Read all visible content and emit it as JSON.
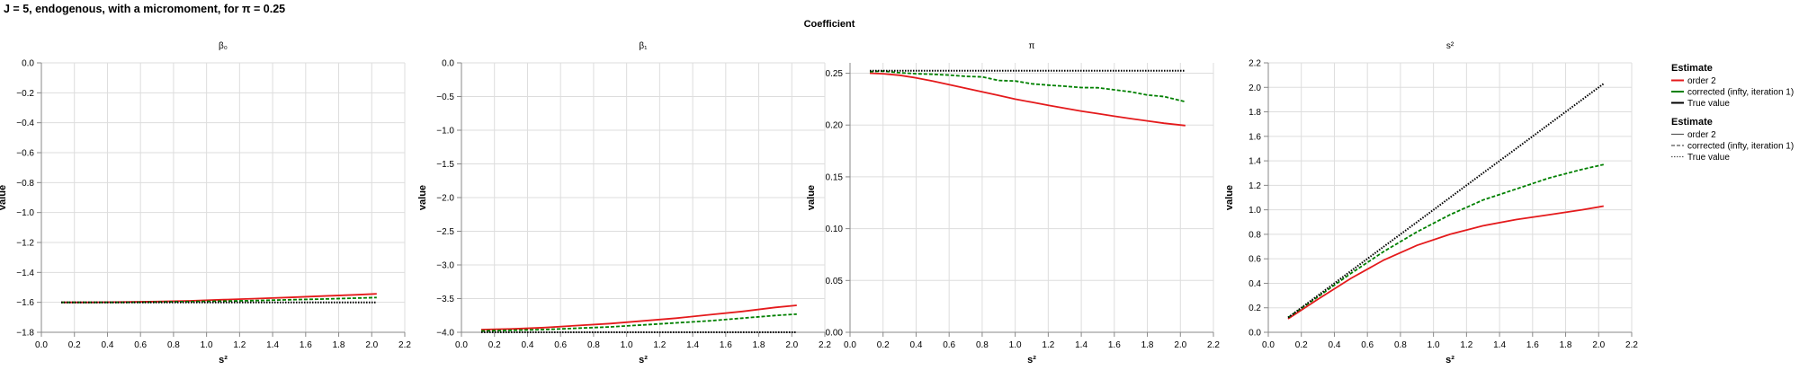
{
  "figure_title": "J = 5, endogenous, with a micromoment,  for π = 0.25",
  "facet_title": "Coefficient",
  "colors": {
    "order2": "#e41a1c",
    "corrected": "#008000",
    "true": "#000000",
    "grid": "#dddddd",
    "axis": "#888888"
  },
  "legend": {
    "color_title": "Estimate",
    "dash_title": "Estimate",
    "entries": [
      "order 2",
      "corrected (infty, iteration 1)",
      "True value"
    ]
  },
  "chart_data": [
    {
      "type": "line",
      "title": "β₀",
      "xlabel": "s²",
      "ylabel": "value",
      "xlim": [
        0.0,
        2.2
      ],
      "ylim": [
        -1.8,
        0.0
      ],
      "xticks": [
        "0.0",
        "0.2",
        "0.4",
        "0.6",
        "0.8",
        "1.0",
        "1.2",
        "1.4",
        "1.6",
        "1.8",
        "2.0",
        "2.2"
      ],
      "yticks": [
        "0.0",
        "−0.2",
        "−0.4",
        "−0.6",
        "−0.8",
        "−1.0",
        "−1.2",
        "−1.4",
        "−1.6",
        "−1.8"
      ],
      "ytick_values": [
        0.0,
        -0.2,
        -0.4,
        -0.6,
        -0.8,
        -1.0,
        -1.2,
        -1.4,
        -1.6,
        -1.8
      ],
      "x": [
        0.12,
        0.3,
        0.5,
        0.7,
        0.9,
        1.1,
        1.3,
        1.5,
        1.7,
        1.9,
        2.03
      ],
      "series": [
        {
          "name": "order 2",
          "values": [
            -1.6,
            -1.6,
            -1.598,
            -1.595,
            -1.59,
            -1.582,
            -1.575,
            -1.567,
            -1.558,
            -1.55,
            -1.543
          ]
        },
        {
          "name": "corrected (infty, iteration 1)",
          "values": [
            -1.6,
            -1.6,
            -1.6,
            -1.598,
            -1.595,
            -1.592,
            -1.588,
            -1.583,
            -1.578,
            -1.572,
            -1.568
          ]
        },
        {
          "name": "True value",
          "values": [
            -1.6,
            -1.6,
            -1.6,
            -1.6,
            -1.6,
            -1.6,
            -1.6,
            -1.6,
            -1.6,
            -1.6,
            -1.6
          ]
        }
      ]
    },
    {
      "type": "line",
      "title": "β₁",
      "xlabel": "s²",
      "ylabel": "value",
      "xlim": [
        0.0,
        2.2
      ],
      "ylim": [
        -4.0,
        0.0
      ],
      "xticks": [
        "0.0",
        "0.2",
        "0.4",
        "0.6",
        "0.8",
        "1.0",
        "1.2",
        "1.4",
        "1.6",
        "1.8",
        "2.0",
        "2.2"
      ],
      "yticks": [
        "0.0",
        "−0.5",
        "−1.0",
        "−1.5",
        "−2.0",
        "−2.5",
        "−3.0",
        "−3.5",
        "−4.0"
      ],
      "ytick_values": [
        0.0,
        -0.5,
        -1.0,
        -1.5,
        -2.0,
        -2.5,
        -3.0,
        -3.5,
        -4.0
      ],
      "x": [
        0.12,
        0.3,
        0.5,
        0.7,
        0.9,
        1.1,
        1.3,
        1.5,
        1.7,
        1.9,
        2.03
      ],
      "series": [
        {
          "name": "order 2",
          "values": [
            -3.96,
            -3.95,
            -3.93,
            -3.9,
            -3.87,
            -3.83,
            -3.79,
            -3.74,
            -3.69,
            -3.63,
            -3.6
          ]
        },
        {
          "name": "corrected (infty, iteration 1)",
          "values": [
            -3.98,
            -3.97,
            -3.96,
            -3.94,
            -3.92,
            -3.89,
            -3.86,
            -3.83,
            -3.79,
            -3.75,
            -3.73
          ]
        },
        {
          "name": "True value",
          "values": [
            -4.0,
            -4.0,
            -4.0,
            -4.0,
            -4.0,
            -4.0,
            -4.0,
            -4.0,
            -4.0,
            -4.0,
            -4.0
          ]
        }
      ]
    },
    {
      "type": "line",
      "title": "π",
      "xlabel": "s²",
      "ylabel": "value",
      "xlim": [
        0.0,
        2.2
      ],
      "ylim": [
        0.0,
        0.26
      ],
      "xticks": [
        "0.0",
        "0.2",
        "0.4",
        "0.6",
        "0.8",
        "1.0",
        "1.2",
        "1.4",
        "1.6",
        "1.8",
        "2.0",
        "2.2"
      ],
      "yticks": [
        "0.25",
        "0.20",
        "0.15",
        "0.10",
        "0.05",
        "0.00"
      ],
      "ytick_values": [
        0.25,
        0.2,
        0.15,
        0.1,
        0.05,
        0.0
      ],
      "x": [
        0.12,
        0.2,
        0.3,
        0.4,
        0.5,
        0.6,
        0.7,
        0.8,
        0.9,
        1.0,
        1.1,
        1.2,
        1.3,
        1.4,
        1.5,
        1.6,
        1.7,
        1.8,
        1.9,
        2.03
      ],
      "series": [
        {
          "name": "order 2",
          "values": [
            0.25,
            0.2495,
            0.248,
            0.2455,
            0.2425,
            0.239,
            0.2355,
            0.232,
            0.2285,
            0.225,
            0.222,
            0.219,
            0.2162,
            0.2135,
            0.211,
            0.2085,
            0.2062,
            0.204,
            0.2018,
            0.1995
          ]
        },
        {
          "name": "corrected (infty, iteration 1)",
          "values": [
            0.2515,
            0.252,
            0.2505,
            0.2495,
            0.249,
            0.2482,
            0.247,
            0.2465,
            0.243,
            0.2425,
            0.2398,
            0.2385,
            0.2375,
            0.2362,
            0.236,
            0.234,
            0.232,
            0.229,
            0.2275,
            0.2225
          ]
        },
        {
          "name": "True value",
          "values": [
            0.2525,
            0.2525,
            0.2525,
            0.2525,
            0.2525,
            0.2525,
            0.2525,
            0.2525,
            0.2525,
            0.2525,
            0.2525,
            0.2525,
            0.2525,
            0.2525,
            0.2525,
            0.2525,
            0.2525,
            0.2525,
            0.2525,
            0.2525
          ]
        }
      ]
    },
    {
      "type": "line",
      "title": "s²",
      "xlabel": "s²",
      "ylabel": "value",
      "xlim": [
        0.0,
        2.2
      ],
      "ylim": [
        0.0,
        2.2
      ],
      "xticks": [
        "0.0",
        "0.2",
        "0.4",
        "0.6",
        "0.8",
        "1.0",
        "1.2",
        "1.4",
        "1.6",
        "1.8",
        "2.0",
        "2.2"
      ],
      "yticks": [
        "2.2",
        "2.0",
        "1.8",
        "1.6",
        "1.4",
        "1.2",
        "1.0",
        "0.8",
        "0.6",
        "0.4",
        "0.2",
        "0.0"
      ],
      "ytick_values": [
        2.2,
        2.0,
        1.8,
        1.6,
        1.4,
        1.2,
        1.0,
        0.8,
        0.6,
        0.4,
        0.2,
        0.0
      ],
      "x": [
        0.12,
        0.3,
        0.5,
        0.7,
        0.9,
        1.1,
        1.3,
        1.5,
        1.7,
        1.9,
        2.03
      ],
      "series": [
        {
          "name": "order 2",
          "values": [
            0.11,
            0.27,
            0.44,
            0.59,
            0.71,
            0.8,
            0.87,
            0.92,
            0.96,
            1.0,
            1.03
          ]
        },
        {
          "name": "corrected (infty, iteration 1)",
          "values": [
            0.12,
            0.29,
            0.48,
            0.66,
            0.82,
            0.96,
            1.08,
            1.17,
            1.26,
            1.33,
            1.37
          ]
        },
        {
          "name": "True value",
          "values": [
            0.12,
            0.3,
            0.5,
            0.7,
            0.9,
            1.1,
            1.3,
            1.5,
            1.7,
            1.9,
            2.03
          ]
        }
      ]
    }
  ]
}
